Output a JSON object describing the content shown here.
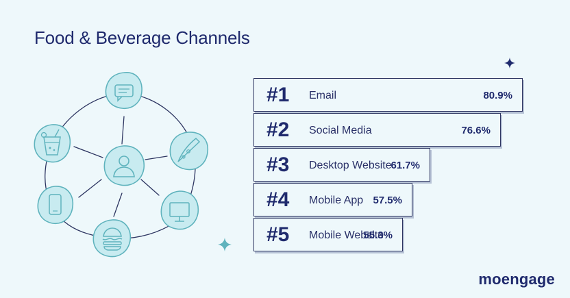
{
  "title": "Food & Beverage Channels",
  "brand": {
    "logo_text": "moengage"
  },
  "colors": {
    "navy": "#1f2a6d",
    "teal": "#5fb3bd",
    "background": "#eef8fb",
    "circle_fill": "#c8ebf0"
  },
  "icons": [
    "chat-bubble-icon",
    "pizza-slice-icon",
    "monitor-icon",
    "burger-icon",
    "smartphone-icon",
    "drink-glass-icon",
    "user-icon"
  ],
  "chart_data": {
    "type": "bar",
    "title": "Food & Beverage Channels",
    "categories": [
      "Email",
      "Social Media",
      "Desktop Website",
      "Mobile App",
      "Mobile Website"
    ],
    "ranks": [
      "#1",
      "#2",
      "#3",
      "#4",
      "#5"
    ],
    "values": [
      80.9,
      76.6,
      61.7,
      57.5,
      55.3
    ],
    "value_labels": [
      "80.9%",
      "76.6%",
      "61.7%",
      "57.5%",
      "55.3%"
    ],
    "unit": "%"
  }
}
